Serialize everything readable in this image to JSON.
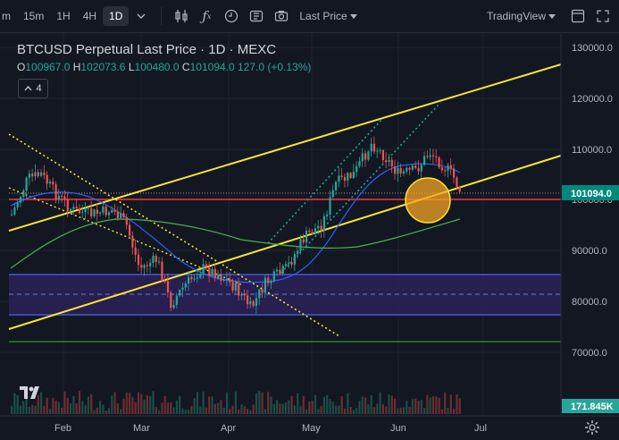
{
  "toolbar": {
    "timeframes": [
      "m",
      "15m",
      "1H",
      "4H",
      "1D"
    ],
    "active_timeframe": "1D",
    "price_type": "Last Price",
    "layout_name": "TradingView"
  },
  "legend": {
    "title": "BTCUSD Perpetual Last Price · 1D · MEXC",
    "open_label": "O",
    "open": "100967.0",
    "high_label": "H",
    "high": "102073.6",
    "low_label": "L",
    "low": "100480.0",
    "close_label": "C",
    "close": "101094.0",
    "change": "127.0 (+0.13%)",
    "indicator_count": "4"
  },
  "price_axis": {
    "ticks": [
      "130000.0",
      "120000.0",
      "110000.0",
      "100000.0",
      "90000.0",
      "80000.0",
      "70000.0"
    ],
    "current_price": "101094.0",
    "current_price_color": "#00897b",
    "volume_label": "171.845K",
    "volume_label_color": "#26a69a"
  },
  "time_axis": {
    "ticks": [
      "Feb",
      "Mar",
      "Apr",
      "May",
      "Jun",
      "Jul"
    ]
  },
  "colors": {
    "up": "#26a69a",
    "down": "#ef5350",
    "channel": "#f5e33b",
    "support_line": "#f23645",
    "zone": "#3f2d7a"
  }
}
